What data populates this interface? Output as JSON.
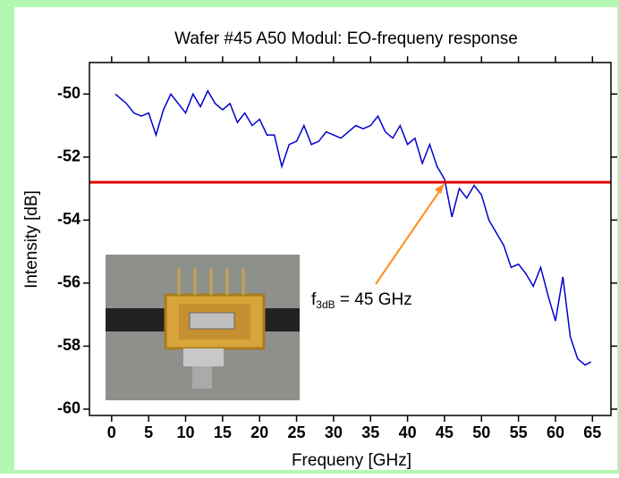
{
  "chart_data": {
    "type": "line",
    "title": "Wafer #45 A50 Modul: EO-frequeny response",
    "xlabel": "Frequeny [GHz]",
    "ylabel": "Intensity [dB]",
    "x": [
      0.5,
      1,
      2,
      3,
      4,
      5,
      6,
      7,
      8,
      9,
      10,
      11,
      12,
      13,
      14,
      15,
      16,
      17,
      18,
      19,
      20,
      21,
      22,
      23,
      24,
      25,
      26,
      27,
      28,
      29,
      30,
      31,
      32,
      33,
      34,
      35,
      36,
      37,
      38,
      39,
      40,
      41,
      42,
      43,
      44,
      45,
      46,
      47,
      48,
      49,
      50,
      51,
      52,
      53,
      54,
      55,
      56,
      57,
      58,
      59,
      60,
      61,
      62,
      63,
      64,
      64.8
    ],
    "values": [
      -50.0,
      -50.1,
      -50.3,
      -50.6,
      -50.7,
      -50.6,
      -51.3,
      -50.5,
      -50.0,
      -50.3,
      -50.6,
      -50.0,
      -50.4,
      -49.9,
      -50.3,
      -50.5,
      -50.3,
      -50.9,
      -50.6,
      -51.0,
      -50.8,
      -51.3,
      -51.3,
      -52.3,
      -51.6,
      -51.5,
      -51.0,
      -51.6,
      -51.5,
      -51.2,
      -51.3,
      -51.4,
      -51.2,
      -51.0,
      -51.1,
      -51.0,
      -50.7,
      -51.2,
      -51.4,
      -51.0,
      -51.6,
      -51.4,
      -52.2,
      -51.6,
      -52.3,
      -52.7,
      -53.9,
      -53.0,
      -53.3,
      -52.9,
      -53.2,
      -54.0,
      -54.4,
      -54.8,
      -55.5,
      -55.4,
      -55.7,
      -56.1,
      -55.5,
      -56.4,
      -57.2,
      -55.8,
      -57.7,
      -58.4,
      -58.6,
      -58.5
    ],
    "color": "#0000cc",
    "reference_line": {
      "value": -52.8,
      "color": "#e00000"
    },
    "annotation": {
      "parts": [
        "f",
        "3dB",
        " = 45 GHz"
      ],
      "color": "#ff8c1a"
    },
    "xlim": [
      -3,
      67.5
    ],
    "xticks": [
      0,
      5,
      10,
      15,
      20,
      25,
      30,
      35,
      40,
      45,
      50,
      55,
      60,
      65
    ],
    "ylim": [
      -60.2,
      -49
    ],
    "yticks": [
      -60,
      -58,
      -56,
      -54,
      -52,
      -50
    ]
  }
}
